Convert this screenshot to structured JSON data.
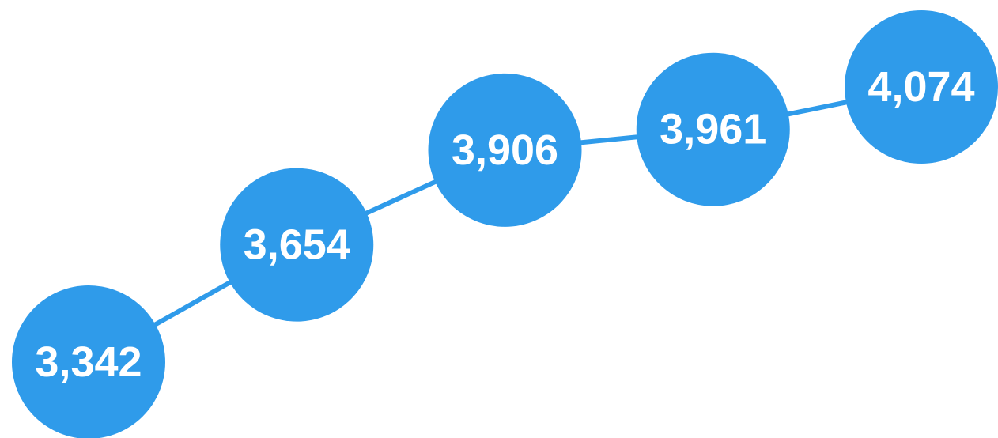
{
  "chart_data": {
    "type": "line",
    "color": "#2f9bea",
    "values": [
      3342,
      3654,
      3906,
      3961,
      4074
    ],
    "value_labels": [
      "3,342",
      "3,654",
      "3,906",
      "3,961",
      "4,074"
    ]
  }
}
